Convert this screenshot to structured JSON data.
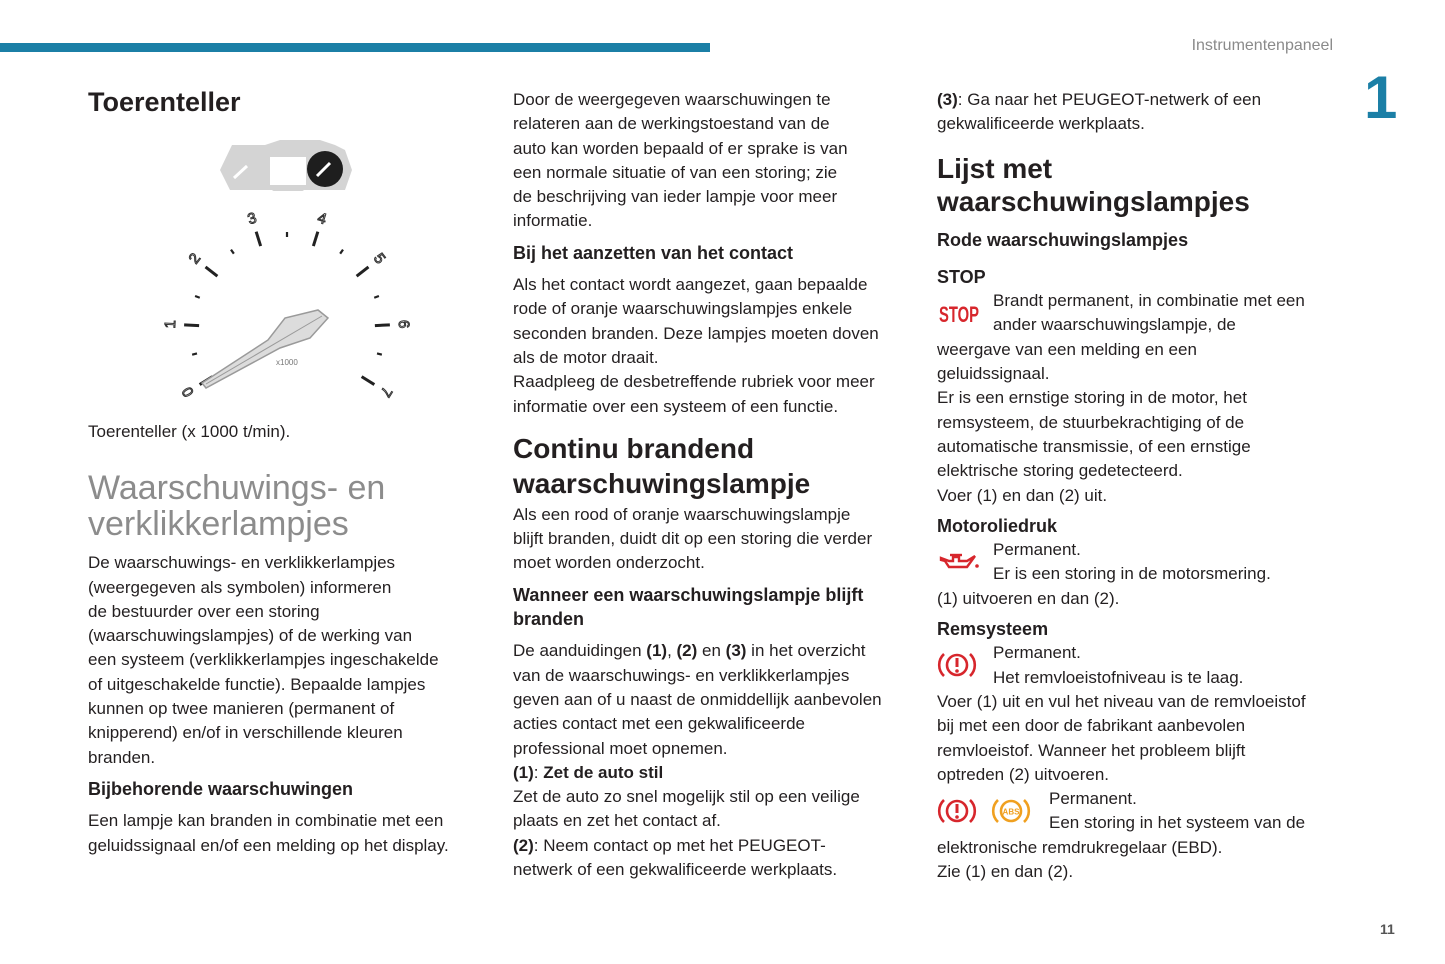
{
  "header": {
    "section_title": "Instrumentenpaneel",
    "chapter_number": "1",
    "page_number": "11",
    "accent_color": "#1b7fa6"
  },
  "gauge": {
    "labels": [
      "0",
      "1",
      "2",
      "3",
      "4",
      "5",
      "6",
      "7"
    ],
    "unit": "x1000"
  },
  "icons": {
    "stop_label": "STOP",
    "abs_label": "ABS",
    "red": "#d7262c",
    "orange": "#f0a020"
  },
  "columns": [
    {
      "blocks": [
        {
          "type": "h1",
          "lines": [
            "Toerenteller"
          ]
        },
        {
          "type": "figure"
        },
        {
          "type": "p",
          "lines": [
            "Toerenteller (x 1000 t/min)."
          ]
        },
        {
          "type": "h2light",
          "lines": [
            "Waarschuwings- en",
            "verklikkerlampjes"
          ]
        },
        {
          "type": "p",
          "lines": [
            "De waarschuwings- en verklikkerlampjes",
            "(weergegeven als symbolen) informeren",
            "de bestuurder over een storing",
            "(waarschuwingslampjes) of de werking van",
            "een systeem (verklikkerlampjes ingeschakelde",
            "of uitgeschakelde functie). Bepaalde lampjes",
            "kunnen op twee manieren (permanent of",
            "knipperend) en/of in verschillende kleuren",
            "branden."
          ]
        },
        {
          "type": "h4",
          "lines": [
            "Bijbehorende waarschuwingen"
          ]
        },
        {
          "type": "p",
          "lines": [
            "Een lampje kan branden in combinatie met een",
            "geluidssignaal en/of een melding op het display."
          ]
        }
      ]
    },
    {
      "blocks": [
        {
          "type": "p",
          "lines": [
            "Door de weergegeven waarschuwingen te",
            "relateren aan de werkingstoestand van de",
            "auto kan worden bepaald of er sprake is van",
            "een normale situatie of van een storing; zie",
            "de beschrijving van ieder lampje voor meer",
            "informatie."
          ]
        },
        {
          "type": "h4",
          "lines": [
            "Bij het aanzetten van het contact"
          ]
        },
        {
          "type": "p",
          "lines": [
            "Als het contact wordt aangezet, gaan bepaalde",
            "rode of oranje waarschuwingslampjes enkele",
            "seconden branden. Deze lampjes moeten doven",
            "als de motor draait.",
            "Raadpleeg de desbetreffende rubriek voor meer",
            "informatie over een systeem of een functie."
          ]
        },
        {
          "type": "h2",
          "lines": [
            "Continu brandend",
            "waarschuwingslampje"
          ]
        },
        {
          "type": "p",
          "lines": [
            "Als een rood of oranje waarschuwingslampje",
            "blijft branden, duidt dit op een storing die verder",
            "moet worden onderzocht."
          ]
        },
        {
          "type": "h4",
          "lines": [
            "Wanneer een waarschuwingslampje blijft",
            "branden"
          ]
        },
        {
          "type": "p",
          "lines": [
            [
              {
                "t": "De aanduidingen "
              },
              {
                "t": "(1)",
                "b": true
              },
              {
                "t": ", "
              },
              {
                "t": "(2)",
                "b": true
              },
              {
                "t": " en "
              },
              {
                "t": "(3)",
                "b": true
              },
              {
                "t": " in het overzicht"
              }
            ],
            "van de waarschuwings- en verklikkerlampjes",
            "geven aan of u naast de onmiddellijk aanbevolen",
            "acties contact met een gekwalificeerde",
            "professional moet opnemen.",
            [
              {
                "t": "(1)",
                "b": true
              },
              {
                "t": ": "
              },
              {
                "t": "Zet de auto stil",
                "b": true
              }
            ],
            "Zet de auto zo snel mogelijk stil op een veilige",
            "plaats en zet het contact af.",
            [
              {
                "t": "(2)",
                "b": true
              },
              {
                "t": ": Neem contact op met het PEUGEOT-"
              }
            ],
            "netwerk of een gekwalificeerde werkplaats."
          ]
        }
      ]
    },
    {
      "blocks": [
        {
          "type": "p",
          "lines": [
            [
              {
                "t": "(3)",
                "b": true
              },
              {
                "t": ": Ga naar het PEUGEOT-netwerk of een"
              }
            ],
            "gekwalificeerde werkplaats."
          ]
        },
        {
          "type": "h2",
          "lines": [
            "Lijst met",
            "waarschuwingslampjes"
          ]
        },
        {
          "type": "h3",
          "lines": [
            "Rode waarschuwingslampjes"
          ]
        },
        {
          "type": "h4t",
          "lines": [
            "STOP"
          ]
        },
        {
          "type": "icon",
          "icons": [
            "stop"
          ],
          "lines": [
            "Brandt permanent, in combinatie met een",
            "ander waarschuwingslampje, de",
            "weergave van een melding en een",
            "geluidssignaal.",
            "Er is een ernstige storing in de motor, het",
            "remsysteem, de stuurbekrachtiging of de",
            "automatische transmissie, of een ernstige",
            "elektrische storing gedetecteerd.",
            "Voer (1) en dan (2) uit."
          ]
        },
        {
          "type": "h4t",
          "lines": [
            "Motoroliedruk"
          ]
        },
        {
          "type": "icon",
          "icons": [
            "oil"
          ],
          "lines": [
            "Permanent.",
            "Er is een storing in de motorsmering.",
            "(1) uitvoeren en dan (2)."
          ]
        },
        {
          "type": "h4t",
          "lines": [
            "Remsysteem"
          ]
        },
        {
          "type": "icon",
          "icons": [
            "brake"
          ],
          "lines": [
            "Permanent.",
            "Het remvloeistofniveau is te laag.",
            "Voer (1) uit en vul het niveau van de remvloeistof",
            "bij met een door de fabrikant aanbevolen",
            "remvloeistof. Wanneer het probleem blijft",
            "optreden (2) uitvoeren."
          ]
        },
        {
          "type": "icon",
          "icons": [
            "brake",
            "abs"
          ],
          "lines": [
            "Permanent.",
            "Een storing in het systeem van de",
            "elektronische remdrukregelaar (EBD).",
            "Zie (1) en dan (2)."
          ]
        }
      ]
    }
  ]
}
